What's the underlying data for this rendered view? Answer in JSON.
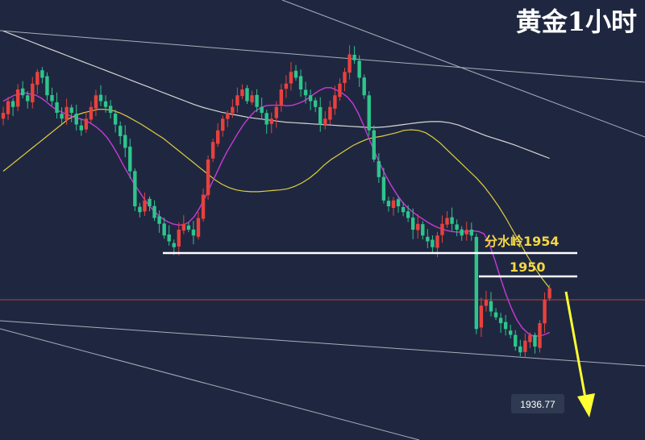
{
  "chart_data": {
    "type": "candlestick",
    "title": "黄金1小时",
    "colors": {
      "background": "#1f2740",
      "bull": "#e8413d",
      "bear": "#2ec58c",
      "ma_fast": "#c93ad8",
      "ma_mid": "#e0cf3f",
      "ma_slow": "#d7d7d7",
      "trendline": "#a9aebb",
      "level": "#ffffff",
      "label": "#f3d742",
      "arrow": "#ffff33",
      "current_price_line": "#b0443e"
    },
    "levels": [
      {
        "label": "分水岭1954",
        "price": 1954
      },
      {
        "label": "1950",
        "price": 1950
      }
    ],
    "current_price_label": "1936.77",
    "closes": [
      1978,
      1980,
      1979,
      1982,
      1981,
      1980,
      1983,
      1985,
      1984,
      1981,
      1980,
      1978,
      1977,
      1979,
      1978,
      1976,
      1975,
      1977,
      1979,
      1981,
      1980,
      1979,
      1978,
      1976,
      1974,
      1972,
      1968,
      1962,
      1961,
      1963,
      1962,
      1960,
      1959,
      1957,
      1956,
      1955,
      1958,
      1959,
      1958,
      1957,
      1960,
      1964,
      1970,
      1973,
      1975,
      1977,
      1978,
      1979,
      1981,
      1982,
      1980,
      1981,
      1979,
      1978,
      1976,
      1977,
      1979,
      1982,
      1983,
      1985,
      1984,
      1982,
      1981,
      1980,
      1979,
      1976,
      1977,
      1979,
      1981,
      1983,
      1985,
      1988,
      1987,
      1984,
      1981,
      1975,
      1970,
      1967,
      1963,
      1962,
      1963,
      1962,
      1961,
      1960,
      1958,
      1959,
      1957,
      1956,
      1955,
      1957,
      1959,
      1960,
      1959,
      1958,
      1957,
      1958,
      1957,
      1941,
      1945,
      1946,
      1944,
      1943,
      1942,
      1941,
      1940,
      1938,
      1937,
      1939,
      1940,
      1938,
      1942,
      1946,
      1948
    ],
    "ma_fast": [
      1980,
      1980.5,
      1981,
      1981.2,
      1981.4,
      1981.2,
      1981,
      1980.5,
      1979.8,
      1979,
      1978.4,
      1978,
      1977.6,
      1977.2,
      1977,
      1976.7,
      1976.2,
      1975.6,
      1974.8,
      1973.8,
      1972.4,
      1970.8,
      1969,
      1967.4,
      1965.8,
      1964.4,
      1963,
      1961.8,
      1960.8,
      1960,
      1959.4,
      1959,
      1958.8,
      1958.8,
      1959.3,
      1960.3,
      1961.8,
      1963.6,
      1965.6,
      1967.6,
      1969.6,
      1971.4,
      1973,
      1974.6,
      1976,
      1977.2,
      1978.2,
      1978.8,
      1979.2,
      1979.3,
      1979.3,
      1979.3,
      1979.2,
      1979.3,
      1979.6,
      1980,
      1980.6,
      1981.3,
      1981.9,
      1982.3,
      1982.3,
      1981.9,
      1981.4,
      1980.7,
      1979.6,
      1977.9,
      1975.8,
      1973.5,
      1971.3,
      1969.2,
      1967.3,
      1965.6,
      1964.1,
      1962.8,
      1961.8,
      1961,
      1960.3,
      1959.7,
      1959.1,
      1958.6,
      1958.2,
      1957.9,
      1957.7,
      1957.6,
      1957.6,
      1957.7,
      1957.8,
      1957.7,
      1957.3,
      1955.5,
      1952.8,
      1949.8,
      1947,
      1944.6,
      1942.6,
      1941.2,
      1940.3,
      1939.8,
      1939.8,
      1940,
      1940.4
    ],
    "ma_mid": [
      1968,
      1969,
      1970,
      1971,
      1972,
      1973,
      1974,
      1975,
      1976,
      1977,
      1977.6,
      1978,
      1978.3,
      1978.6,
      1978.6,
      1978.4,
      1978,
      1977.4,
      1976.7,
      1976,
      1975.2,
      1974.4,
      1973.6,
      1972.6,
      1971.6,
      1970.6,
      1969.6,
      1968.6,
      1967.6,
      1966.6,
      1965.8,
      1965.2,
      1964.8,
      1964.6,
      1964.5,
      1964.5,
      1964.6,
      1964.7,
      1964.8,
      1965,
      1965.4,
      1966,
      1966.8,
      1967.8,
      1969,
      1970,
      1970.8,
      1971.6,
      1972.4,
      1973,
      1973.5,
      1973.8,
      1974,
      1974.3,
      1974.6,
      1975,
      1975.1,
      1975,
      1974.6,
      1973.8,
      1972.8,
      1971.6,
      1970.4,
      1969.2,
      1968,
      1966.8,
      1965.4,
      1963.8,
      1962,
      1960,
      1957.8,
      1955.6,
      1953.4,
      1951.4,
      1949.6,
      1948
    ],
    "ma_slow": [
      1992,
      1991.4,
      1990.8,
      1990.2,
      1989.6,
      1989,
      1988.4,
      1987.8,
      1987.2,
      1986.6,
      1986,
      1985.4,
      1984.8,
      1984.2,
      1983.6,
      1983,
      1982.4,
      1981.8,
      1981.2,
      1980.6,
      1980,
      1979.4,
      1978.9,
      1978.5,
      1978.1,
      1977.8,
      1977.5,
      1977.2,
      1977,
      1976.8,
      1976.6,
      1976.4,
      1976.3,
      1976.2,
      1976.1,
      1976,
      1975.9,
      1975.8,
      1975.7,
      1975.6,
      1975.5,
      1975.5,
      1975.6,
      1975.8,
      1976,
      1976.2,
      1976.4,
      1976.5,
      1976.5,
      1976.3,
      1975.9,
      1975.3,
      1974.7,
      1974.1,
      1973.6,
      1973.1,
      1972.6,
      1972,
      1971.4,
      1970.8,
      1970.2
    ]
  }
}
